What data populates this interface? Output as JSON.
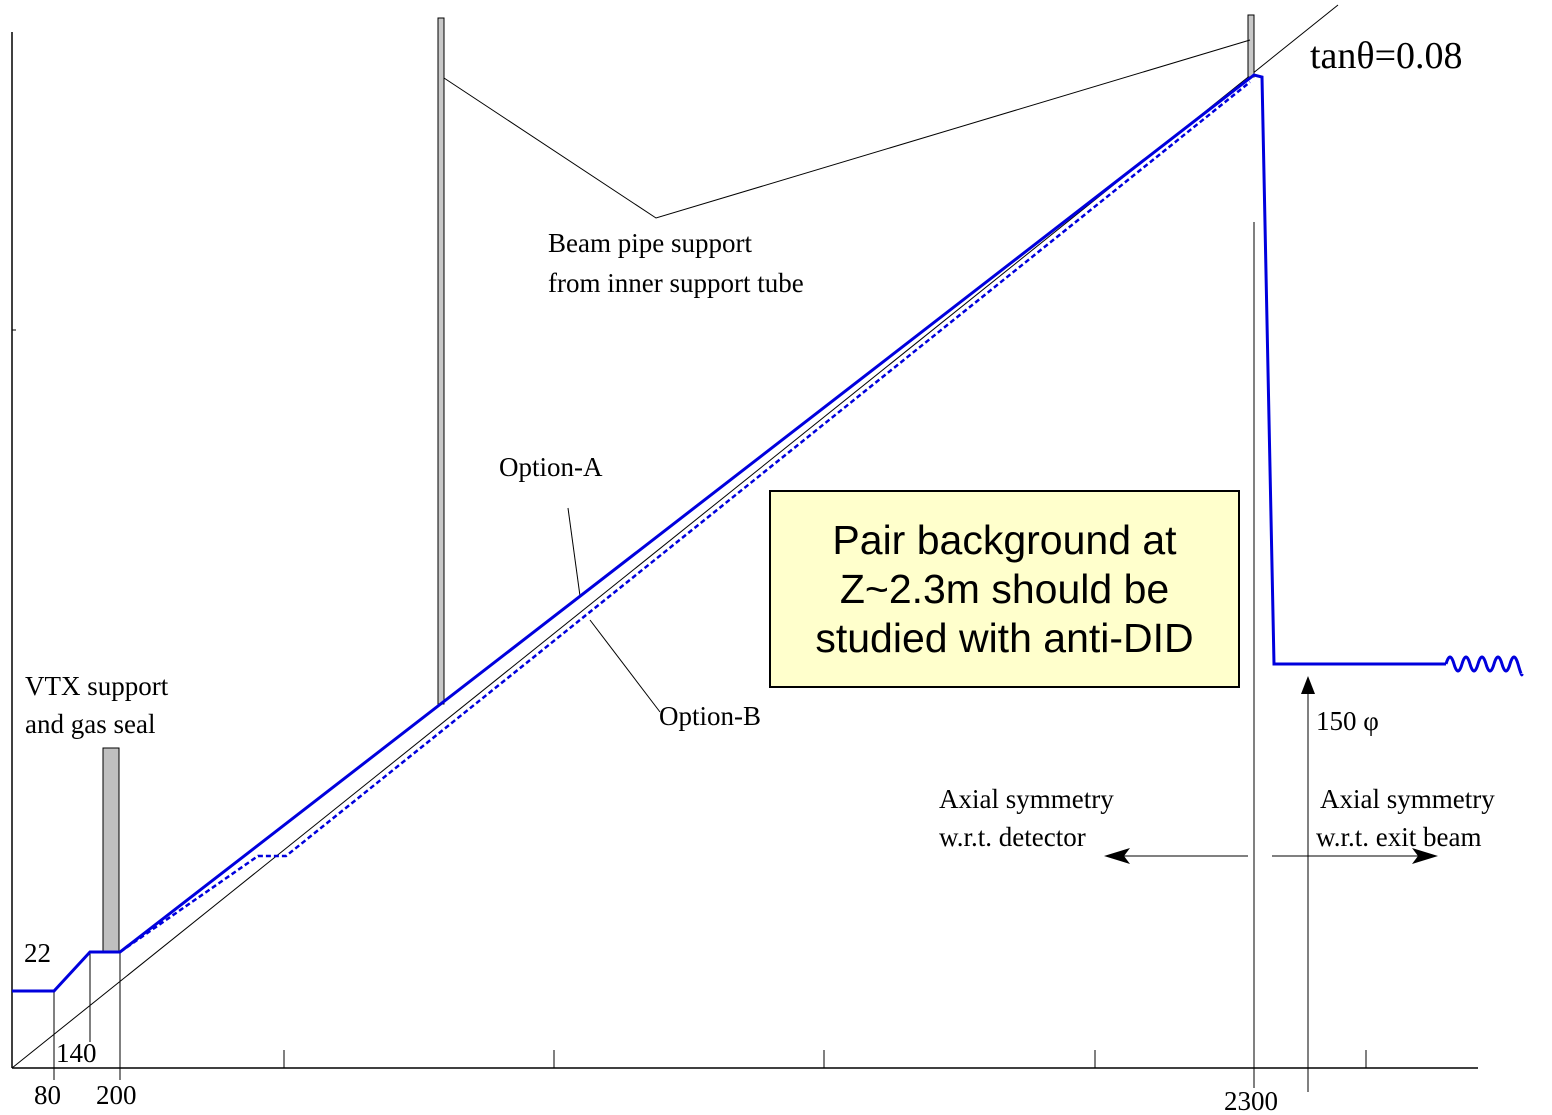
{
  "labels": {
    "tan_theta": "tanθ=0.08",
    "support_line1": "Beam pipe support",
    "support_line2": "from inner support tube",
    "option_a": "Option-A",
    "option_b": "Option-B",
    "vtx_line1": "VTX support",
    "vtx_line2": "and gas seal",
    "diam_150": "150 φ",
    "axial_det_line1": "Axial symmetry",
    "axial_det_line2": "w.r.t. detector",
    "axial_exit_line1": "Axial symmetry",
    "axial_exit_line2": "w.r.t. exit beam",
    "r22": "22",
    "z80": "80",
    "z140": "140",
    "z200": "200",
    "z2300": "2300"
  },
  "note": {
    "line1": "Pair background at",
    "line2": "Z~2.3m should be",
    "line3": "studied with anti-DID"
  },
  "colors": {
    "beam_pipe": "#0000dd",
    "support": "#c0c0c0",
    "note_bg": "#ffffcc"
  }
}
